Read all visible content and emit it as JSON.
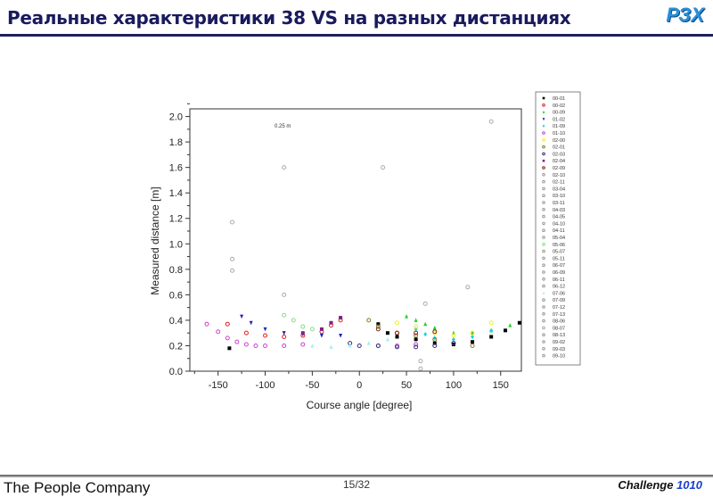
{
  "header": {
    "title": "Реальные характеристики 38 VS на разных дистанциях",
    "logo_text": "РЗХ"
  },
  "footer": {
    "company": "The People Company",
    "page": "15/32",
    "challenge_label": "Challenge",
    "challenge_number": "1010"
  },
  "chart_data": {
    "type": "scatter",
    "title": "",
    "annotation": "0.25 m",
    "xlabel": "Course angle [degree]",
    "ylabel": "Measured distance [m]",
    "xlim": [
      -180,
      172
    ],
    "ylim": [
      0,
      2.06
    ],
    "xticks": [
      -150,
      -100,
      -50,
      0,
      50,
      100,
      150
    ],
    "yticks": [
      "0.0",
      "0.2",
      "0.4",
      "0.6",
      "0.8",
      "1.0",
      "1.2",
      "1.4",
      "1.6",
      "1.8",
      "2.0"
    ],
    "legend_position": "right",
    "legend": [
      "00-01",
      "00-02",
      "00-09",
      "01-02",
      "01-09",
      "01-10",
      "02-00",
      "02-01",
      "02-03",
      "02-04",
      "02-09",
      "02-10",
      "02-11",
      "03-04",
      "03-10",
      "03-11",
      "04-03",
      "04-05",
      "04-10",
      "04-11",
      "05-04",
      "05-06",
      "05-07",
      "05-11",
      "06-07",
      "06-09",
      "06-11",
      "06-12",
      "07-06",
      "07-09",
      "07-12",
      "07-13",
      "08-06",
      "08-07",
      "08-13",
      "09-02",
      "09-03",
      "09-10"
    ],
    "series": [
      {
        "name": "00-01",
        "color": "#000000",
        "marker": "square",
        "x": [
          -138,
          20,
          30,
          40,
          60,
          80,
          100,
          120,
          140,
          155,
          170
        ],
        "y": [
          0.18,
          0.37,
          0.3,
          0.27,
          0.25,
          0.22,
          0.21,
          0.23,
          0.27,
          0.32,
          0.38
        ]
      },
      {
        "name": "00-02",
        "color": "#e02020",
        "marker": "circle",
        "x": [
          -140,
          -120,
          -100,
          -80,
          -60,
          -40,
          -30,
          -20
        ],
        "y": [
          0.37,
          0.3,
          0.28,
          0.27,
          0.28,
          0.31,
          0.36,
          0.4
        ]
      },
      {
        "name": "00-09",
        "color": "#20d020",
        "marker": "triangle",
        "x": [
          50,
          60,
          70,
          80,
          100,
          120,
          140,
          160
        ],
        "y": [
          0.43,
          0.4,
          0.37,
          0.34,
          0.3,
          0.3,
          0.32,
          0.36
        ]
      },
      {
        "name": "01-02",
        "color": "#2020c0",
        "marker": "triangle-down",
        "x": [
          -125,
          -115,
          -100,
          -80,
          -60,
          -40,
          -20
        ],
        "y": [
          0.43,
          0.38,
          0.33,
          0.3,
          0.29,
          0.28,
          0.28
        ]
      },
      {
        "name": "01-09",
        "color": "#20d0e0",
        "marker": "diamond",
        "x": [
          60,
          70,
          80,
          100,
          120,
          140
        ],
        "y": [
          0.33,
          0.29,
          0.26,
          0.25,
          0.27,
          0.32
        ]
      },
      {
        "name": "01-10",
        "color": "#d040d0",
        "marker": "circle",
        "x": [
          -162,
          -150,
          -140,
          -130,
          -120,
          -110,
          -100,
          -80,
          -60,
          20,
          40,
          60
        ],
        "y": [
          0.37,
          0.31,
          0.26,
          0.23,
          0.21,
          0.2,
          0.2,
          0.2,
          0.21,
          0.2,
          0.2,
          0.21
        ]
      },
      {
        "name": "02-00",
        "color": "#f0f020",
        "marker": "circle",
        "x": [
          40,
          60,
          80,
          100,
          120,
          140
        ],
        "y": [
          0.38,
          0.35,
          0.3,
          0.28,
          0.3,
          0.38
        ]
      },
      {
        "name": "02-01",
        "color": "#808020",
        "marker": "circle",
        "x": [
          10,
          20,
          40,
          60,
          80,
          100,
          120
        ],
        "y": [
          0.4,
          0.35,
          0.3,
          0.28,
          0.25,
          0.22,
          0.2
        ]
      },
      {
        "name": "02-03",
        "color": "#303080",
        "marker": "circle",
        "x": [
          -10,
          0,
          20,
          40,
          60,
          80,
          100
        ],
        "y": [
          0.22,
          0.2,
          0.2,
          0.19,
          0.19,
          0.2,
          0.22
        ]
      },
      {
        "name": "02-04",
        "color": "#802080",
        "marker": "square",
        "x": [
          -60,
          -40,
          -30,
          -20
        ],
        "y": [
          0.3,
          0.33,
          0.38,
          0.42
        ]
      },
      {
        "name": "02-09",
        "color": "#802020",
        "marker": "circle",
        "x": [
          20,
          40,
          60,
          80
        ],
        "y": [
          0.33,
          0.3,
          0.3,
          0.31
        ]
      },
      {
        "name": "05-06",
        "color": "#80e080",
        "marker": "circle",
        "x": [
          -80,
          -70,
          -60,
          -50
        ],
        "y": [
          0.44,
          0.4,
          0.35,
          0.33
        ]
      },
      {
        "name": "07-06",
        "color": "#a0f0f0",
        "marker": "triangle",
        "x": [
          -50,
          -30,
          -10,
          10,
          30
        ],
        "y": [
          0.2,
          0.19,
          0.2,
          0.22,
          0.25
        ]
      },
      {
        "name": "08-07",
        "color": "#aaaaaa",
        "marker": "circle",
        "x": [
          -80,
          25,
          -135,
          -135,
          -135,
          140,
          -80,
          70,
          115,
          65,
          65
        ],
        "y": [
          1.6,
          1.6,
          1.17,
          0.88,
          0.79,
          1.96,
          0.6,
          0.53,
          0.66,
          0.08,
          0.02
        ]
      }
    ]
  }
}
